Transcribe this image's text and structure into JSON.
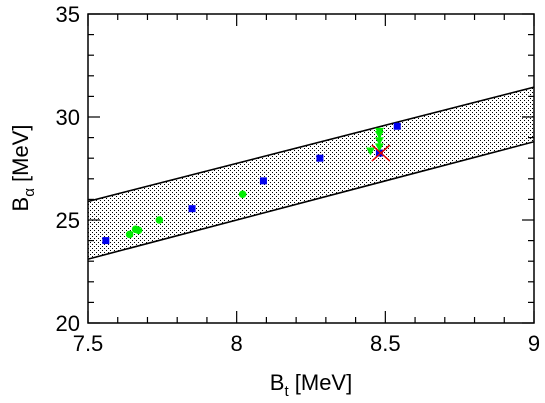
{
  "chart_data": {
    "type": "scatter",
    "xlabel_main": "B",
    "xlabel_sub": "t",
    "xlabel_unit": " [MeV]",
    "ylabel_main": "B",
    "ylabel_sub": "α",
    "ylabel_unit": " [MeV]",
    "xlim": [
      7.5,
      9
    ],
    "ylim": [
      20,
      35
    ],
    "xticks": [
      7.5,
      8,
      8.5,
      9
    ],
    "xtick_labels": [
      "7.5",
      "8",
      "8.5",
      "9"
    ],
    "yticks": [
      20,
      25,
      30,
      35
    ],
    "ytick_labels": [
      "20",
      "25",
      "30",
      "35"
    ],
    "band": {
      "upper": [
        [
          7.5,
          25.9
        ],
        [
          9,
          31.45
        ]
      ],
      "lower": [
        [
          7.5,
          23.1
        ],
        [
          9,
          28.8
        ]
      ],
      "fill": "dotted"
    },
    "series": [
      {
        "marker": "square",
        "color": "#0000ee",
        "points": [
          [
            7.56,
            24.0
          ],
          [
            7.85,
            25.55
          ],
          [
            8.09,
            26.9
          ],
          [
            8.28,
            28.0
          ],
          [
            8.48,
            28.25
          ],
          [
            8.54,
            29.55
          ]
        ]
      },
      {
        "marker": "circle",
        "color": "#00ee00",
        "points": [
          [
            7.64,
            24.3
          ],
          [
            7.66,
            24.55
          ],
          [
            7.67,
            24.5
          ],
          [
            7.74,
            25.0
          ],
          [
            8.02,
            26.25
          ]
        ]
      },
      {
        "marker": "triangle-down",
        "color": "#00ee00",
        "points": [
          [
            8.45,
            28.35
          ],
          [
            8.48,
            28.55
          ],
          [
            8.48,
            28.85
          ],
          [
            8.48,
            29.15
          ],
          [
            8.48,
            29.3
          ]
        ]
      },
      {
        "marker": "x",
        "color": "#dd0000",
        "points": [
          [
            8.485,
            28.25
          ]
        ]
      }
    ]
  }
}
